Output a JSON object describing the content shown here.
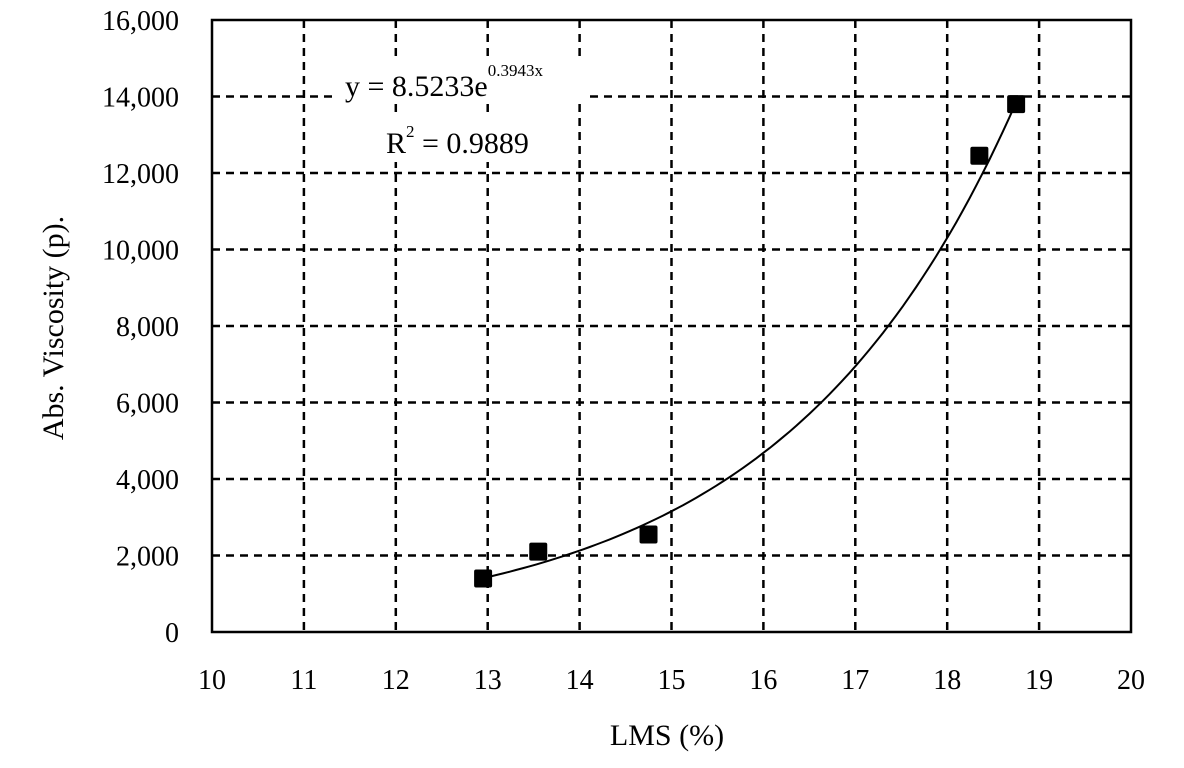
{
  "chart_data": {
    "type": "scatter",
    "xlabel": "LMS (%)",
    "ylabel": "Abs. Viscosity (p).",
    "xlim": [
      10,
      20
    ],
    "ylim": [
      0,
      16000
    ],
    "xticks": [
      10,
      11,
      12,
      13,
      14,
      15,
      16,
      17,
      18,
      19,
      20
    ],
    "yticks": [
      0,
      2000,
      4000,
      6000,
      8000,
      10000,
      12000,
      14000,
      16000
    ],
    "xtick_labels": [
      "10",
      "11",
      "12",
      "13",
      "14",
      "15",
      "16",
      "17",
      "18",
      "19",
      "20"
    ],
    "ytick_labels": [
      "0",
      "2,000",
      "4,000",
      "6,000",
      "8,000",
      "10,000",
      "12,000",
      "14,000",
      "16,000"
    ],
    "grid": true,
    "series": [
      {
        "marker": "square",
        "color": "#000000",
        "points": [
          {
            "x": 12.95,
            "y": 1400
          },
          {
            "x": 13.55,
            "y": 2100
          },
          {
            "x": 14.75,
            "y": 2550
          },
          {
            "x": 18.35,
            "y": 12450
          },
          {
            "x": 18.75,
            "y": 13800
          }
        ]
      }
    ],
    "trendline": {
      "type": "exponential",
      "a": 8.5233,
      "b": 0.3943,
      "x_range": [
        12.95,
        18.75
      ]
    },
    "annotations": {
      "equation_prefix": "y = 8.5233e",
      "equation_exponent": "0.3943x",
      "r2_prefix": "R",
      "r2_sup": "2",
      "r2_value": " = 0.9889"
    }
  }
}
